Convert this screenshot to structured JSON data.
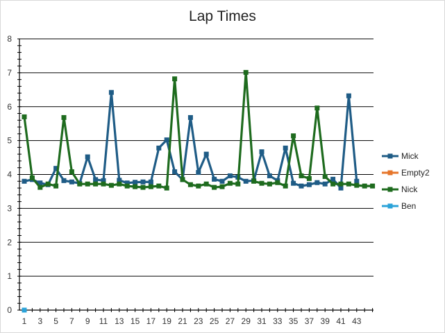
{
  "chart_data": {
    "type": "line",
    "title": "Lap Times",
    "xlabel": "",
    "ylabel": "",
    "ylim": [
      0,
      8
    ],
    "yticks": [
      0,
      1,
      2,
      3,
      4,
      5,
      6,
      7,
      8
    ],
    "xlim": [
      1,
      45
    ],
    "xticks": [
      1,
      3,
      5,
      7,
      9,
      11,
      13,
      15,
      17,
      19,
      21,
      23,
      25,
      27,
      29,
      31,
      33,
      35,
      37,
      39,
      41,
      43
    ],
    "grid": "horizontal",
    "legend_position": "right",
    "series": [
      {
        "name": "Mick",
        "color": "#1f5c86",
        "x": [
          1,
          2,
          3,
          4,
          5,
          6,
          7,
          8,
          9,
          10,
          11,
          12,
          13,
          14,
          15,
          16,
          17,
          18,
          19,
          20,
          21,
          22,
          23,
          24,
          25,
          26,
          27,
          28,
          29,
          30,
          31,
          32,
          33,
          34,
          35,
          36,
          37,
          38,
          39,
          40,
          41,
          42,
          43
        ],
        "values": [
          3.8,
          3.85,
          3.75,
          3.7,
          4.18,
          3.82,
          3.78,
          3.74,
          4.52,
          3.85,
          3.82,
          6.42,
          3.83,
          3.75,
          3.77,
          3.78,
          3.78,
          4.78,
          5.02,
          4.08,
          3.85,
          5.68,
          4.06,
          4.6,
          3.86,
          3.8,
          3.96,
          3.92,
          3.8,
          3.82,
          4.67,
          3.96,
          3.82,
          4.78,
          3.74,
          3.66,
          3.7,
          3.76,
          3.72,
          3.86,
          3.6,
          6.32,
          3.8
        ]
      },
      {
        "name": "Empty2",
        "color": "#e6762b",
        "x": [],
        "values": []
      },
      {
        "name": "Nick",
        "color": "#1e6b1e",
        "x": [
          1,
          2,
          3,
          4,
          5,
          6,
          7,
          8,
          9,
          10,
          11,
          12,
          13,
          14,
          15,
          16,
          17,
          18,
          19,
          20,
          21,
          22,
          23,
          24,
          25,
          26,
          27,
          28,
          29,
          30,
          31,
          32,
          33,
          34,
          35,
          36,
          37,
          38,
          39,
          40,
          41,
          42,
          43,
          44,
          45
        ],
        "values": [
          5.7,
          3.9,
          3.62,
          3.72,
          3.66,
          5.68,
          4.08,
          3.72,
          3.72,
          3.72,
          3.72,
          3.68,
          3.72,
          3.66,
          3.64,
          3.62,
          3.64,
          3.66,
          3.6,
          6.82,
          3.85,
          3.7,
          3.66,
          3.72,
          3.62,
          3.64,
          3.74,
          3.72,
          7.01,
          3.8,
          3.74,
          3.72,
          3.76,
          3.66,
          5.14,
          3.96,
          3.88,
          5.96,
          3.94,
          3.72,
          3.72,
          3.72,
          3.68,
          3.66,
          3.66
        ]
      },
      {
        "name": "Ben",
        "color": "#2ba3d9",
        "x": [
          1
        ],
        "values": [
          0
        ]
      }
    ]
  }
}
